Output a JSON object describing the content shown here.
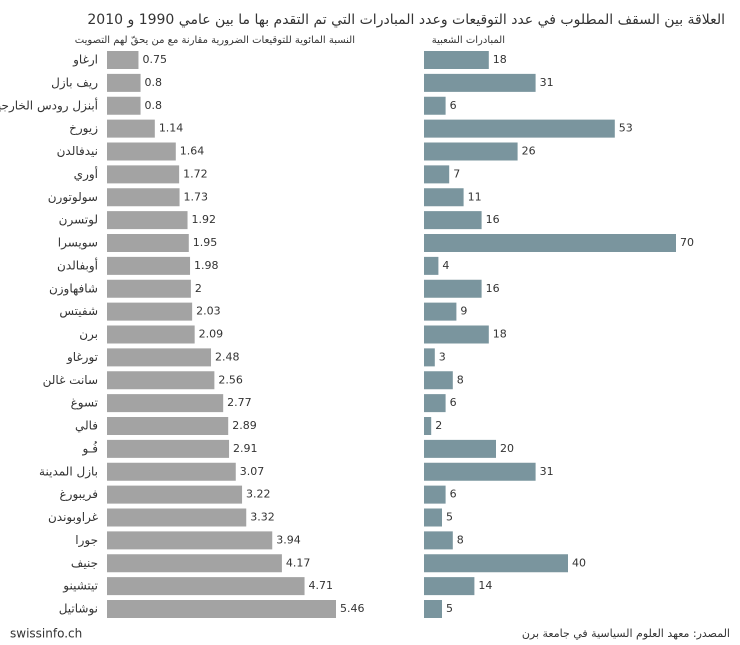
{
  "chart_data": {
    "type": "bar",
    "orientation": "horizontal",
    "title": "العلاقة بين السقف المطلوب في عدد التوقيعات وعدد المبادرات التي تم التقدم بها ما بين عامي 1990 و 2010",
    "categories": [
      "ارغاو",
      "ريف بازل",
      "أبنزل رودس الخارجية",
      "زيورخ",
      "نيدفالدن",
      "أوري",
      "سولوتورن",
      "لوتسرن",
      "سويسرا",
      "أوبفالدن",
      "شافهاوزن",
      "شفيتس",
      "برن",
      "تورغاو",
      "سانت غالن",
      "تسوغ",
      "فالي",
      "فُـو",
      "بازل المدينة",
      "فريبورغ",
      "غراوبوندن",
      "جورا",
      "جنيف",
      "تيتشينو",
      "نوشاتيل"
    ],
    "series": [
      {
        "name": "النسبة المائوية للتوقيعات الضرورية مقارنة مع من يحقّ لهم التصويت",
        "color": "#a3a3a3",
        "values": [
          0.75,
          0.8,
          0.8,
          1.14,
          1.64,
          1.72,
          1.73,
          1.92,
          1.95,
          1.98,
          2,
          2.03,
          2.09,
          2.48,
          2.56,
          2.77,
          2.89,
          2.91,
          3.07,
          3.22,
          3.32,
          3.94,
          4.17,
          4.71,
          5.46
        ]
      },
      {
        "name": "المبادرات الشعبية",
        "color": "#7a959e",
        "values": [
          18,
          31,
          6,
          53,
          26,
          7,
          11,
          16,
          70,
          4,
          16,
          9,
          18,
          3,
          8,
          6,
          2,
          20,
          31,
          6,
          5,
          8,
          40,
          14,
          5
        ]
      }
    ],
    "credit": "swissinfo.ch",
    "source": "المصدر: معهد العلوم السياسية في جامعة برن"
  }
}
